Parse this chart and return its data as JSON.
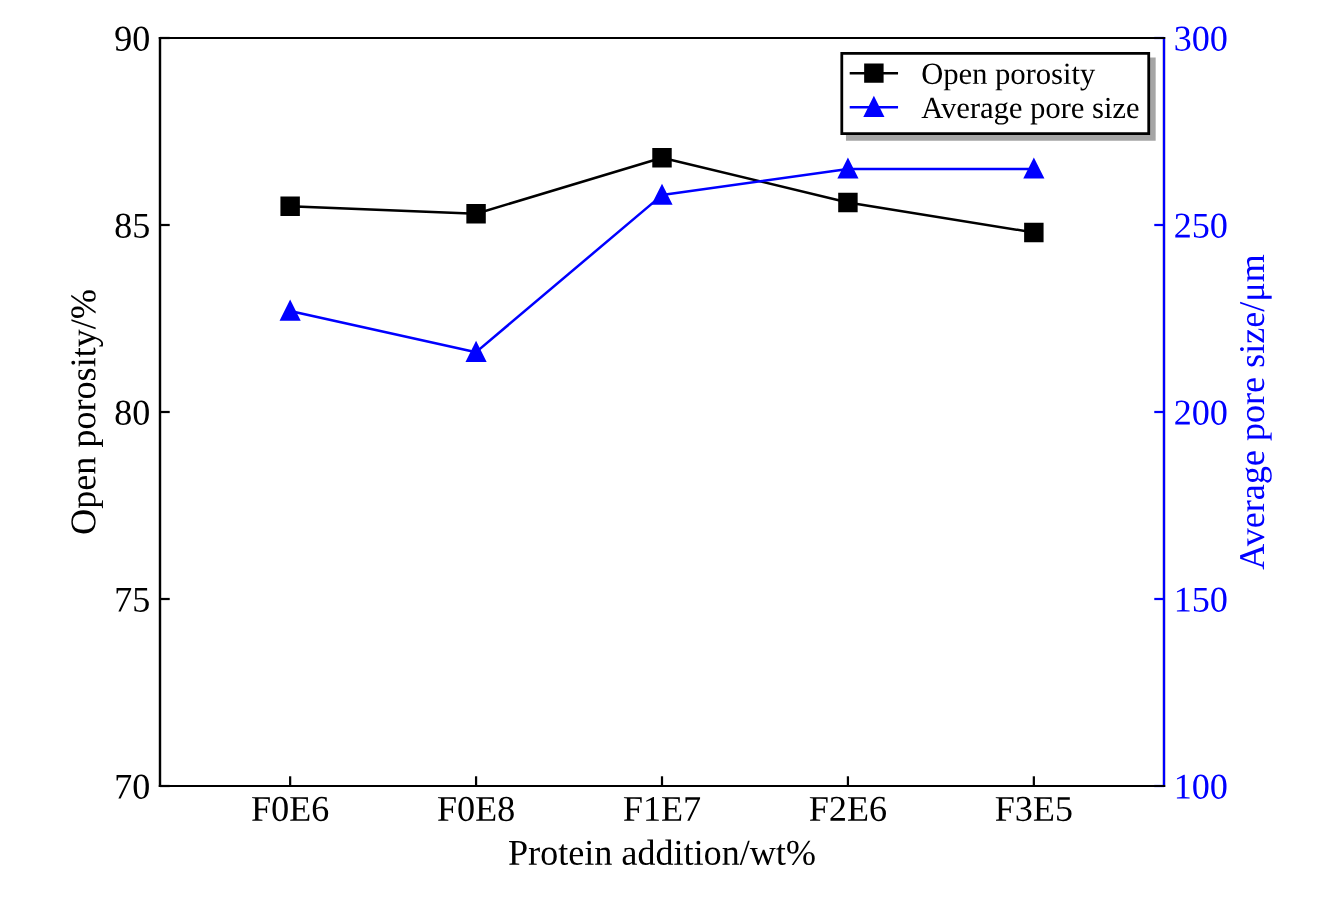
{
  "chart_data": {
    "type": "line",
    "xlabel": "Protein addition/wt%",
    "ylabel": "Open porosity/%",
    "y2label": "Average pore size/μm",
    "categories": [
      "F0E6",
      "F0E8",
      "F1E7",
      "F2E6",
      "F3E5"
    ],
    "series": [
      {
        "name": "Open porosity",
        "color": "#000000",
        "marker": "square",
        "values": [
          85.5,
          85.3,
          86.8,
          85.6,
          84.8
        ]
      },
      {
        "name": "Average pore size",
        "color": "#0000ff",
        "marker": "triangle",
        "axis": "y2",
        "values": [
          227,
          216,
          258,
          265,
          265
        ]
      }
    ],
    "ylim": [
      70,
      90
    ],
    "yticks": [
      70,
      75,
      80,
      85,
      90
    ],
    "y2lim": [
      100,
      300
    ],
    "y2ticks": [
      100,
      150,
      200,
      250,
      300
    ],
    "grid": false,
    "legend": "top right",
    "line_style": "solid"
  }
}
